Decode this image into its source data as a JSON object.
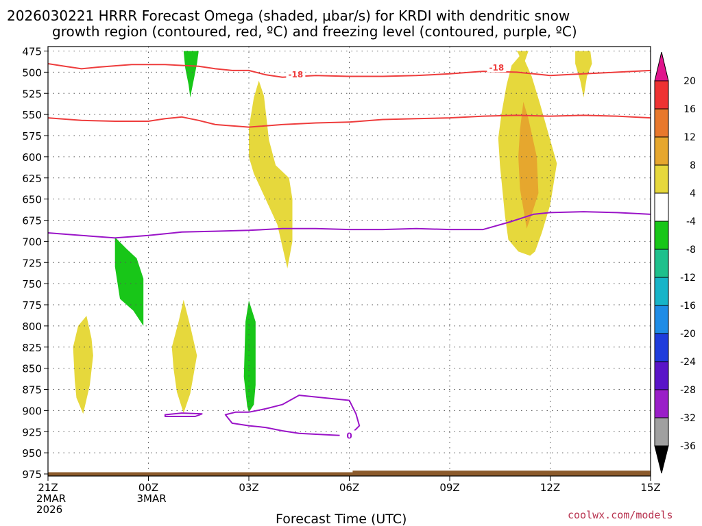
{
  "chart_data": {
    "type": "contour",
    "title_line1": "2026030221 HRRR Forecast Omega (shaded, μbar/s) for KRDI with dendritic snow",
    "title_line2": "growth region (contoured, red, ºC) and freezing level (contoured, purple, ºC)",
    "xlabel": "Forecast Time (UTC)",
    "credit": "coolwx.com/models",
    "xlim": [
      0,
      18
    ],
    "ylim": [
      475,
      975
    ],
    "x_ticks": [
      {
        "x": 0,
        "lines": [
          "21Z",
          "2MAR",
          "2026"
        ]
      },
      {
        "x": 3,
        "lines": [
          "00Z",
          "3MAR"
        ]
      },
      {
        "x": 6,
        "lines": [
          "03Z"
        ]
      },
      {
        "x": 9,
        "lines": [
          "06Z"
        ]
      },
      {
        "x": 12,
        "lines": [
          "09Z"
        ]
      },
      {
        "x": 15,
        "lines": [
          "12Z"
        ]
      },
      {
        "x": 18,
        "lines": [
          "15Z"
        ]
      }
    ],
    "y_ticks": [
      475,
      500,
      525,
      550,
      575,
      600,
      625,
      650,
      675,
      700,
      725,
      750,
      775,
      800,
      825,
      850,
      875,
      900,
      925,
      950,
      975
    ],
    "colorbar": {
      "labels": [
        "20",
        "16",
        "12",
        "8",
        "4",
        "-4",
        "-8",
        "-12",
        "-16",
        "-20",
        "-24",
        "-28",
        "-32",
        "-36"
      ],
      "bins": [
        {
          "color": "#ee3232",
          "from": 16,
          "to": 20
        },
        {
          "color": "#e8782c",
          "from": 12,
          "to": 16
        },
        {
          "color": "#e6a72e",
          "from": 8,
          "to": 12
        },
        {
          "color": "#e6d83c",
          "from": 4,
          "to": 8
        },
        {
          "color": "#ffffff",
          "from": -4,
          "to": 4
        },
        {
          "color": "#18c618",
          "from": -8,
          "to": -4
        },
        {
          "color": "#1ec08c",
          "from": -12,
          "to": -8
        },
        {
          "color": "#16b4c8",
          "from": -16,
          "to": -12
        },
        {
          "color": "#1e8ce6",
          "from": -20,
          "to": -16
        },
        {
          "color": "#1e3cdc",
          "from": -24,
          "to": -20
        },
        {
          "color": "#5a14c8",
          "from": -28,
          "to": -24
        },
        {
          "color": "#9a1ec8",
          "from": -32,
          "to": -28
        },
        {
          "color": "#a0a0a0",
          "from": -36,
          "to": -32
        }
      ],
      "top_color": "#e0148c",
      "bottom_color": "#000000"
    },
    "colors": {
      "yellow": "#e6d83c",
      "orange": "#e6a72e",
      "green": "#18c618",
      "red_contour": "#ee3c3c",
      "purple_contour": "#9a14c8",
      "ground": "#8b5a2b"
    },
    "shaded_regions": [
      {
        "color": "#18c618",
        "points": [
          [
            4.05,
            475
          ],
          [
            4.5,
            475
          ],
          [
            4.45,
            490
          ],
          [
            4.25,
            530
          ],
          [
            4.2,
            515
          ],
          [
            4.1,
            495
          ]
        ]
      },
      {
        "color": "#e6d83c",
        "points": [
          [
            14.0,
            475
          ],
          [
            14.35,
            475
          ],
          [
            14.2,
            492
          ],
          [
            14.05,
            478
          ]
        ]
      },
      {
        "color": "#e6d83c",
        "points": [
          [
            15.75,
            475
          ],
          [
            16.2,
            475
          ],
          [
            16.25,
            490
          ],
          [
            16.1,
            505
          ],
          [
            16.0,
            530
          ],
          [
            15.9,
            510
          ],
          [
            15.75,
            490
          ]
        ]
      },
      {
        "color": "#e6d83c",
        "points": [
          [
            6.0,
            566
          ],
          [
            6.15,
            530
          ],
          [
            6.3,
            510
          ],
          [
            6.45,
            528
          ],
          [
            6.6,
            580
          ],
          [
            6.8,
            610
          ],
          [
            7.2,
            625
          ],
          [
            7.3,
            650
          ],
          [
            7.3,
            700
          ],
          [
            7.15,
            732
          ],
          [
            6.85,
            680
          ],
          [
            6.5,
            650
          ],
          [
            6.15,
            620
          ],
          [
            6.0,
            600
          ]
        ]
      },
      {
        "color": "#e6d83c",
        "points": [
          [
            13.55,
            548
          ],
          [
            13.7,
            515
          ],
          [
            13.85,
            492
          ],
          [
            14.15,
            478
          ],
          [
            14.45,
            505
          ],
          [
            14.7,
            538
          ],
          [
            14.95,
            573
          ],
          [
            15.2,
            608
          ],
          [
            15.0,
            657
          ],
          [
            14.75,
            690
          ],
          [
            14.55,
            712
          ],
          [
            14.4,
            717
          ],
          [
            14.05,
            712
          ],
          [
            13.75,
            698
          ],
          [
            13.65,
            670
          ],
          [
            13.5,
            610
          ],
          [
            13.45,
            578
          ]
        ]
      },
      {
        "color": "#e6a72e",
        "points": [
          [
            14.1,
            568
          ],
          [
            14.2,
            535
          ],
          [
            14.35,
            555
          ],
          [
            14.6,
            600
          ],
          [
            14.65,
            643
          ],
          [
            14.45,
            668
          ],
          [
            14.3,
            685
          ],
          [
            14.1,
            638
          ],
          [
            14.05,
            600
          ]
        ]
      },
      {
        "color": "#18c618",
        "points": [
          [
            2.0,
            695
          ],
          [
            2.35,
            709
          ],
          [
            2.65,
            720
          ],
          [
            2.85,
            744
          ],
          [
            2.85,
            800
          ],
          [
            2.55,
            782
          ],
          [
            2.15,
            768
          ],
          [
            2.0,
            730
          ]
        ]
      },
      {
        "color": "#e6d83c",
        "points": [
          [
            0.75,
            825
          ],
          [
            0.9,
            800
          ],
          [
            1.15,
            788
          ],
          [
            1.3,
            815
          ],
          [
            1.35,
            835
          ],
          [
            1.25,
            870
          ],
          [
            1.05,
            904
          ],
          [
            0.85,
            885
          ],
          [
            0.8,
            865
          ]
        ]
      },
      {
        "color": "#e6d83c",
        "points": [
          [
            3.7,
            825
          ],
          [
            3.9,
            795
          ],
          [
            4.05,
            769
          ],
          [
            4.25,
            800
          ],
          [
            4.45,
            835
          ],
          [
            4.25,
            880
          ],
          [
            4.05,
            903
          ],
          [
            3.85,
            878
          ],
          [
            3.75,
            850
          ]
        ]
      },
      {
        "color": "#18c618",
        "points": [
          [
            5.9,
            795
          ],
          [
            6.0,
            770
          ],
          [
            6.2,
            795
          ],
          [
            6.2,
            870
          ],
          [
            6.15,
            893
          ],
          [
            6.0,
            902
          ],
          [
            5.95,
            895
          ],
          [
            5.85,
            860
          ]
        ]
      }
    ],
    "contours": [
      {
        "name": "dgz-top",
        "color": "#ee3c3c",
        "label": "-18",
        "labels_at": [
          [
            7.4,
            503
          ],
          [
            13.4,
            495
          ]
        ],
        "points": [
          [
            0,
            490
          ],
          [
            0.5,
            493
          ],
          [
            1.0,
            496
          ],
          [
            1.5,
            494
          ],
          [
            2.5,
            491
          ],
          [
            3.5,
            491
          ],
          [
            4.5,
            493
          ],
          [
            5.0,
            496
          ],
          [
            5.5,
            498
          ],
          [
            6.0,
            498
          ],
          [
            6.5,
            503
          ],
          [
            7.0,
            506
          ],
          [
            8.0,
            504
          ],
          [
            9.0,
            505
          ],
          [
            10.0,
            505
          ],
          [
            11.0,
            504
          ],
          [
            12.0,
            502
          ],
          [
            13.0,
            499
          ],
          [
            14.0,
            500
          ],
          [
            14.5,
            502
          ],
          [
            15.0,
            504
          ],
          [
            16.0,
            502
          ],
          [
            17.0,
            500
          ],
          [
            18.0,
            498
          ]
        ]
      },
      {
        "name": "dgz-bottom",
        "color": "#ee3c3c",
        "label": "",
        "labels_at": [],
        "points": [
          [
            0,
            554
          ],
          [
            1.0,
            557
          ],
          [
            2.0,
            558
          ],
          [
            3.0,
            558
          ],
          [
            3.5,
            555
          ],
          [
            4.0,
            553
          ],
          [
            4.5,
            557
          ],
          [
            5.0,
            562
          ],
          [
            6.0,
            565
          ],
          [
            7.0,
            562
          ],
          [
            8.0,
            560
          ],
          [
            9.0,
            559
          ],
          [
            10.0,
            556
          ],
          [
            11.0,
            555
          ],
          [
            12.0,
            554
          ],
          [
            13.0,
            552
          ],
          [
            14.0,
            551
          ],
          [
            15.0,
            552
          ],
          [
            16.0,
            551
          ],
          [
            17.0,
            552
          ],
          [
            18.0,
            554
          ]
        ]
      },
      {
        "name": "freezing-level",
        "color": "#9a14c8",
        "label": "",
        "labels_at": [],
        "points": [
          [
            0,
            690
          ],
          [
            1.0,
            693
          ],
          [
            2.0,
            696
          ],
          [
            3.0,
            693
          ],
          [
            4.0,
            689
          ],
          [
            5.0,
            688
          ],
          [
            6.0,
            687
          ],
          [
            7.0,
            685
          ],
          [
            8.0,
            685
          ],
          [
            9.0,
            686
          ],
          [
            10.0,
            686
          ],
          [
            11.0,
            685
          ],
          [
            12.0,
            686
          ],
          [
            13.0,
            686
          ],
          [
            13.8,
            677
          ],
          [
            14.5,
            668
          ],
          [
            15.0,
            666
          ],
          [
            16.0,
            665
          ],
          [
            17.0,
            666
          ],
          [
            18.0,
            668
          ]
        ]
      },
      {
        "name": "zero-line-small",
        "color": "#9a14c8",
        "label": "",
        "labels_at": [],
        "closed": true,
        "points": [
          [
            3.5,
            905
          ],
          [
            4.0,
            903
          ],
          [
            4.6,
            904
          ],
          [
            4.4,
            907
          ],
          [
            3.9,
            907
          ],
          [
            3.5,
            907
          ]
        ]
      },
      {
        "name": "zero-line-loop",
        "color": "#9a14c8",
        "label": "0",
        "labels_at": [
          [
            9.0,
            930
          ]
        ],
        "closed": false,
        "points": [
          [
            6.0,
            902
          ],
          [
            6.5,
            898
          ],
          [
            7.0,
            893
          ],
          [
            7.5,
            882
          ],
          [
            8.0,
            884
          ],
          [
            8.5,
            886
          ],
          [
            9.0,
            888
          ],
          [
            9.2,
            904
          ],
          [
            9.3,
            918
          ],
          [
            9.0,
            930
          ],
          [
            8.5,
            929
          ],
          [
            8.0,
            928
          ],
          [
            7.5,
            927
          ],
          [
            7.0,
            924
          ],
          [
            6.5,
            920
          ],
          [
            6.0,
            918
          ],
          [
            5.5,
            915
          ],
          [
            5.3,
            905
          ],
          [
            5.6,
            902
          ],
          [
            6.0,
            902
          ]
        ]
      }
    ],
    "ground": {
      "points": [
        [
          0,
          973
        ],
        [
          9.1,
          973
        ],
        [
          9.1,
          971
        ],
        [
          18,
          971
        ],
        [
          18,
          980
        ],
        [
          0,
          980
        ]
      ]
    }
  }
}
